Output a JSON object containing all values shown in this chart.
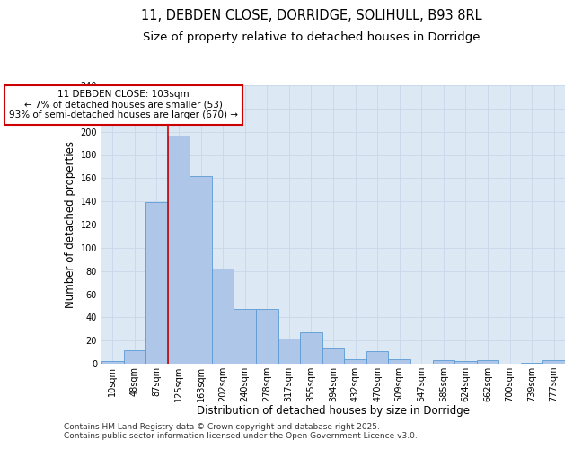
{
  "title_line1": "11, DEBDEN CLOSE, DORRIDGE, SOLIHULL, B93 8RL",
  "title_line2": "Size of property relative to detached houses in Dorridge",
  "xlabel": "Distribution of detached houses by size in Dorridge",
  "ylabel": "Number of detached properties",
  "categories": [
    "10sqm",
    "48sqm",
    "87sqm",
    "125sqm",
    "163sqm",
    "202sqm",
    "240sqm",
    "278sqm",
    "317sqm",
    "355sqm",
    "394sqm",
    "432sqm",
    "470sqm",
    "509sqm",
    "547sqm",
    "585sqm",
    "624sqm",
    "662sqm",
    "700sqm",
    "739sqm",
    "777sqm"
  ],
  "values": [
    2,
    12,
    139,
    197,
    162,
    82,
    47,
    47,
    22,
    27,
    13,
    4,
    11,
    4,
    0,
    3,
    2,
    3,
    0,
    1,
    3
  ],
  "bar_color": "#aec6e8",
  "bar_edge_color": "#5b9bd5",
  "vline_color": "#cc0000",
  "vline_x": 2.5,
  "annotation_text": "11 DEBDEN CLOSE: 103sqm\n← 7% of detached houses are smaller (53)\n93% of semi-detached houses are larger (670) →",
  "annotation_box_color": "#ffffff",
  "annotation_box_edge_color": "#cc0000",
  "ylim": [
    0,
    240
  ],
  "yticks": [
    0,
    20,
    40,
    60,
    80,
    100,
    120,
    140,
    160,
    180,
    200,
    220,
    240
  ],
  "grid_color": "#c8d8e8",
  "bg_color": "#dce9f5",
  "footer_text": "Contains HM Land Registry data © Crown copyright and database right 2025.\nContains public sector information licensed under the Open Government Licence v3.0.",
  "title_fontsize": 10.5,
  "subtitle_fontsize": 9.5,
  "axis_label_fontsize": 8.5,
  "tick_fontsize": 7,
  "annotation_fontsize": 7.5,
  "footer_fontsize": 6.5
}
